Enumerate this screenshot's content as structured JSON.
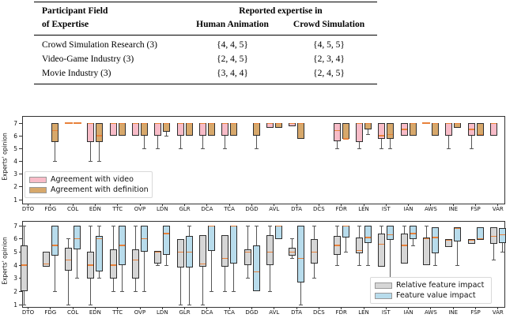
{
  "table": {
    "col1_header_line1": "Participant Field",
    "col1_header_line2": "of Expertise",
    "span_header": "Reported expertise in",
    "col2_header": "Human Animation",
    "col3_header": "Crowd Simulation",
    "rows": [
      {
        "field": "Crowd Simulation Research (3)",
        "human_animation": "{4, 4, 5}",
        "crowd_simulation": "{4, 5, 5}"
      },
      {
        "field": "Video-Game Industry (3)",
        "human_animation": "{2, 4, 5}",
        "crowd_simulation": "{2, 3, 4}"
      },
      {
        "field": "Movie Industry (3)",
        "human_animation": "{3, 4, 4}",
        "crowd_simulation": "{2, 4, 5}"
      }
    ]
  },
  "colors": {
    "pink": "#f8bcc8",
    "tan": "#d7a86b",
    "gray": "#d6d6d6",
    "blue": "#b8dcec",
    "median_orange": "#e8813a",
    "box_edge": "#2e2e2e",
    "whisker": "#555555",
    "axis": "#333333"
  },
  "chart_data": [
    {
      "type": "boxplot",
      "ylabel": "Experts' opinion",
      "yticks": [
        1,
        2,
        3,
        4,
        5,
        6,
        7
      ],
      "ylim": [
        0.6,
        7.5
      ],
      "grid": false,
      "legend_position": "lower left",
      "categories": [
        "DTO",
        "FDG",
        "COL",
        "EDN",
        "TTC",
        "OVP",
        "LDN",
        "GLR",
        "DCA",
        "TCA",
        "DGD",
        "AVL",
        "DTA",
        "DCS",
        "FDR",
        "LEN",
        "IST",
        "IAN",
        "AWS",
        "INE",
        "FSP",
        "VAR"
      ],
      "series": [
        {
          "name": "Agreement with video",
          "color": "#f8bcc8",
          "boxes": [
            null,
            null,
            {
              "lo": 7,
              "q1": 7,
              "med": 7,
              "q3": 7,
              "hi": 7
            },
            {
              "lo": 4,
              "q1": 5.5,
              "med": 7,
              "q3": 7,
              "hi": 7
            },
            {
              "lo": 6,
              "q1": 6,
              "med": 7,
              "q3": 7,
              "hi": 7
            },
            {
              "lo": 6,
              "q1": 6,
              "med": 7,
              "q3": 7,
              "hi": 7
            },
            {
              "lo": 5,
              "q1": 6,
              "med": 7,
              "q3": 7,
              "hi": 7
            },
            {
              "lo": 5,
              "q1": 6,
              "med": 7,
              "q3": 7,
              "hi": 7
            },
            {
              "lo": 5,
              "q1": 6,
              "med": 7,
              "q3": 7,
              "hi": 7
            },
            {
              "lo": 5,
              "q1": 6,
              "med": 7,
              "q3": 7,
              "hi": 7
            },
            null,
            {
              "lo": 6.6,
              "q1": 6.6,
              "med": 7,
              "q3": 7,
              "hi": 7
            },
            {
              "lo": 6.75,
              "q1": 6.75,
              "med": 7,
              "q3": 7,
              "hi": 7
            },
            null,
            {
              "lo": 5,
              "q1": 5.6,
              "med": 6.4,
              "q3": 7,
              "hi": 7
            },
            {
              "lo": 5,
              "q1": 5.5,
              "med": 7,
              "q3": 7,
              "hi": 7
            },
            {
              "lo": 5,
              "q1": 5.75,
              "med": 6,
              "q3": 7,
              "hi": 7
            },
            {
              "lo": 6,
              "q1": 6,
              "med": 6.5,
              "q3": 7,
              "hi": 7
            },
            {
              "lo": 7,
              "q1": 7,
              "med": 7,
              "q3": 7,
              "hi": 7
            },
            {
              "lo": 5,
              "q1": 6,
              "med": 7,
              "q3": 7,
              "hi": 7
            },
            {
              "lo": 5,
              "q1": 6,
              "med": 6.5,
              "q3": 7,
              "hi": 7
            },
            {
              "lo": 6,
              "q1": 6,
              "med": 7,
              "q3": 7,
              "hi": 7
            }
          ]
        },
        {
          "name": "Agreement with definition",
          "color": "#d7a86b",
          "boxes": [
            null,
            {
              "lo": 4,
              "q1": 5.5,
              "med": 6.4,
              "q3": 7,
              "hi": 7
            },
            {
              "lo": 7,
              "q1": 7,
              "med": 7,
              "q3": 7,
              "hi": 7
            },
            {
              "lo": 4,
              "q1": 5.5,
              "med": 6,
              "q3": 7,
              "hi": 7
            },
            {
              "lo": 6,
              "q1": 6,
              "med": 7,
              "q3": 7,
              "hi": 7
            },
            {
              "lo": 5,
              "q1": 6,
              "med": 7,
              "q3": 7,
              "hi": 7
            },
            {
              "lo": 6,
              "q1": 6.3,
              "med": 7,
              "q3": 7,
              "hi": 7
            },
            {
              "lo": 6,
              "q1": 6,
              "med": 7,
              "q3": 7,
              "hi": 7
            },
            {
              "lo": 6,
              "q1": 6,
              "med": 7,
              "q3": 7,
              "hi": 7
            },
            {
              "lo": 6,
              "q1": 6,
              "med": 7,
              "q3": 7,
              "hi": 7
            },
            {
              "lo": 5,
              "q1": 6,
              "med": 7,
              "q3": 7,
              "hi": 7
            },
            {
              "lo": 6.6,
              "q1": 6.6,
              "med": 7,
              "q3": 7,
              "hi": 7
            },
            {
              "lo": 5.75,
              "q1": 5.75,
              "med": 7,
              "q3": 7,
              "hi": 7
            },
            null,
            {
              "lo": 5.75,
              "q1": 5.75,
              "med": 5.75,
              "q3": 7,
              "hi": 7
            },
            {
              "lo": 6.1,
              "q1": 6.5,
              "med": 7,
              "q3": 7,
              "hi": 7
            },
            {
              "lo": 5,
              "q1": 5.75,
              "med": 6.1,
              "q3": 7,
              "hi": 7
            },
            {
              "lo": 6,
              "q1": 6,
              "med": 7,
              "q3": 7,
              "hi": 7
            },
            {
              "lo": 6,
              "q1": 6,
              "med": 7,
              "q3": 7,
              "hi": 7
            },
            {
              "lo": 6.6,
              "q1": 6.6,
              "med": 7,
              "q3": 7,
              "hi": 7
            },
            {
              "lo": 6,
              "q1": 6,
              "med": 6.1,
              "q3": 7,
              "hi": 7
            },
            null
          ]
        }
      ]
    },
    {
      "type": "boxplot",
      "ylabel": "Experts' opinion",
      "yticks": [
        1,
        2,
        3,
        4,
        5,
        6,
        7
      ],
      "ylim": [
        0.6,
        7.3
      ],
      "grid": false,
      "legend_position": "lower right",
      "categories": [
        "DTO",
        "FDG",
        "COL",
        "EDN",
        "TTC",
        "OVP",
        "LDN",
        "GLR",
        "DCA",
        "TCA",
        "DGD",
        "AVL",
        "DTA",
        "DCS",
        "FDR",
        "LEN",
        "IST",
        "IAN",
        "AWS",
        "INE",
        "FSP",
        "VAR"
      ],
      "series": [
        {
          "name": "Relative feature impact",
          "color": "#d6d6d6",
          "boxes": [
            {
              "lo": 1,
              "q1": 2,
              "med": 4,
              "q3": 5.5,
              "hi": 7
            },
            {
              "lo": 3.9,
              "q1": 3.9,
              "med": 4.1,
              "q3": 5,
              "hi": 5
            },
            {
              "lo": 1,
              "q1": 3.6,
              "med": 4.4,
              "q3": 5.3,
              "hi": 6
            },
            {
              "lo": 1,
              "q1": 3,
              "med": 4,
              "q3": 5,
              "hi": 7
            },
            {
              "lo": 2,
              "q1": 3,
              "med": 4,
              "q3": 5.2,
              "hi": 7
            },
            {
              "lo": 2,
              "q1": 3,
              "med": 4.4,
              "q3": 5.2,
              "hi": 7
            },
            {
              "lo": 4,
              "q1": 4.1,
              "med": 5,
              "q3": 5.1,
              "hi": 5.1
            },
            {
              "lo": 1,
              "q1": 3.8,
              "med": 5,
              "q3": 6,
              "hi": 6
            },
            {
              "lo": 1,
              "q1": 3.9,
              "med": 4.1,
              "q3": 6.3,
              "hi": 6.3
            },
            {
              "lo": 2,
              "q1": 3.9,
              "med": 4.5,
              "q3": 6.3,
              "hi": 6.3
            },
            {
              "lo": 3,
              "q1": 4,
              "med": 5,
              "q3": 5.2,
              "hi": 7
            },
            {
              "lo": 2,
              "q1": 4,
              "med": 5,
              "q3": 6.3,
              "hi": 7
            },
            {
              "lo": 4.5,
              "q1": 4.7,
              "med": 5,
              "q3": 5.3,
              "hi": 6
            },
            {
              "lo": 3,
              "q1": 4.1,
              "med": 5,
              "q3": 6,
              "hi": 7
            },
            {
              "lo": 4,
              "q1": 4.8,
              "med": 5.5,
              "q3": 6.2,
              "hi": 7
            },
            {
              "lo": 4,
              "q1": 4.9,
              "med": 5.1,
              "q3": 6.1,
              "hi": 7
            },
            {
              "lo": 3.9,
              "q1": 3.9,
              "med": 5.6,
              "q3": 6.4,
              "hi": 7
            },
            {
              "lo": 4.1,
              "q1": 4.1,
              "med": 5.5,
              "q3": 6.4,
              "hi": 7
            },
            {
              "lo": 4,
              "q1": 4,
              "med": 6,
              "q3": 6.1,
              "hi": 7
            },
            {
              "lo": 5.4,
              "q1": 5.4,
              "med": 5.9,
              "q3": 6,
              "hi": 6
            },
            {
              "lo": 5.6,
              "q1": 5.6,
              "med": 5.9,
              "q3": 6,
              "hi": 6
            },
            {
              "lo": 4.4,
              "q1": 5.6,
              "med": 6.2,
              "q3": 6.9,
              "hi": 6.9
            }
          ]
        },
        {
          "name": "Feature value impact",
          "color": "#b8dcec",
          "boxes": [
            null,
            {
              "lo": 2,
              "q1": 4.7,
              "med": 5.5,
              "q3": 7,
              "hi": 7
            },
            {
              "lo": 3,
              "q1": 5.2,
              "med": 6,
              "q3": 7,
              "hi": 7
            },
            {
              "lo": 3,
              "q1": 3.5,
              "med": 6,
              "q3": 6.2,
              "hi": 7
            },
            {
              "lo": 2,
              "q1": 4,
              "med": 5.5,
              "q3": 7,
              "hi": 7
            },
            {
              "lo": 2,
              "q1": 5,
              "med": 6,
              "q3": 7,
              "hi": 7
            },
            {
              "lo": 4,
              "q1": 4.8,
              "med": 6.4,
              "q3": 7,
              "hi": 7
            },
            {
              "lo": 1,
              "q1": 3.8,
              "med": 5,
              "q3": 6.2,
              "hi": 7
            },
            {
              "lo": 2,
              "q1": 5.1,
              "med": 7,
              "q3": 7,
              "hi": 7
            },
            {
              "lo": 2,
              "q1": 4.1,
              "med": 7,
              "q3": 7,
              "hi": 7
            },
            {
              "lo": 2,
              "q1": 2,
              "med": 3.5,
              "q3": 5.5,
              "hi": 7
            },
            {
              "lo": 6,
              "q1": 6,
              "med": 7,
              "q3": 7,
              "hi": 7
            },
            {
              "lo": 1,
              "q1": 2.7,
              "med": 4.5,
              "q3": 7,
              "hi": 7
            },
            null,
            {
              "lo": 5,
              "q1": 6.1,
              "med": 7,
              "q3": 7,
              "hi": 7
            },
            {
              "lo": 4,
              "q1": 5.7,
              "med": 6.1,
              "q3": 7,
              "hi": 7
            },
            {
              "lo": 3,
              "q1": 5.9,
              "med": 6.3,
              "q3": 7,
              "hi": 7
            },
            {
              "lo": 5.5,
              "q1": 6,
              "med": 6.4,
              "q3": 7,
              "hi": 7
            },
            {
              "lo": 4,
              "q1": 4.9,
              "med": 6.1,
              "q3": 6.9,
              "hi": 6.9
            },
            {
              "lo": 4,
              "q1": 5.8,
              "med": 6.8,
              "q3": 6.9,
              "hi": 6.9
            },
            {
              "lo": 5.9,
              "q1": 5.9,
              "med": 6,
              "q3": 6.9,
              "hi": 6.9
            },
            {
              "lo": 5,
              "q1": 5.7,
              "med": 6.3,
              "q3": 6.8,
              "hi": 6.8
            }
          ]
        }
      ]
    }
  ]
}
